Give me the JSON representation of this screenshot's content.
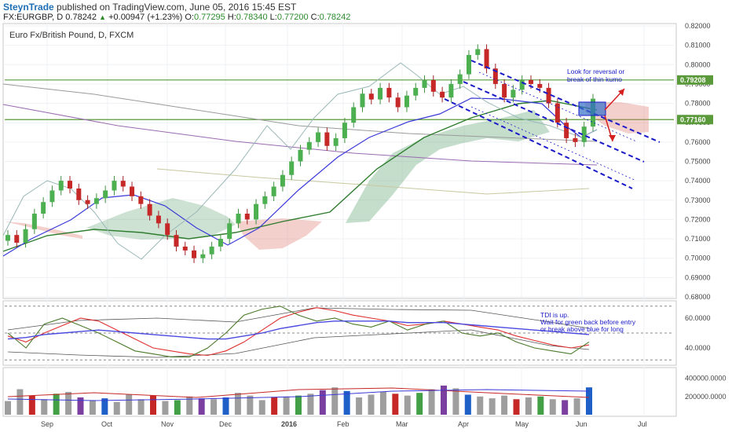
{
  "header": {
    "brand": "SteynTrade",
    "published": "published on TradingView.com, June 05, 2016 15:45 EST",
    "symbol": "FX:EURGBP, D",
    "last": "0.78242",
    "change": "+0.00947 (+1.23%)",
    "o_label": "O:",
    "o_value": "0.77295",
    "h_label": "H:",
    "h_value": "0.78340",
    "l_label": "L:",
    "l_value": "0.77200",
    "c_label": "C:",
    "c_value": "0.78242"
  },
  "chart_data": [
    {
      "type": "candlestick",
      "title": "Euro Fx/British Pound, D, FXCM",
      "ylim": [
        0.68,
        0.82
      ],
      "y_ticks": [
        "0.82000",
        "0.81000",
        "0.80000",
        "0.79000",
        "0.78000",
        "0.77000",
        "0.76000",
        "0.75000",
        "0.74000",
        "0.73000",
        "0.72000",
        "0.71000",
        "0.70000",
        "0.69000",
        "0.68000"
      ],
      "x_ticks": [
        "Sep",
        "Oct",
        "Nov",
        "Dec",
        "2016",
        "Feb",
        "Mar",
        "Apr",
        "May",
        "Jun",
        "Jul"
      ],
      "price_labels": [
        {
          "text": "0.79208",
          "value": 0.79208,
          "color": "#5a9a3a"
        },
        {
          "text": "0.77160",
          "value": 0.7716,
          "color": "#5a9a3a"
        }
      ],
      "horizontal_levels": [
        0.79208,
        0.7716
      ],
      "closes": [
        0.712,
        0.708,
        0.715,
        0.723,
        0.729,
        0.735,
        0.74,
        0.736,
        0.73,
        0.728,
        0.731,
        0.735,
        0.74,
        0.737,
        0.732,
        0.728,
        0.722,
        0.718,
        0.712,
        0.706,
        0.704,
        0.7,
        0.702,
        0.706,
        0.71,
        0.718,
        0.723,
        0.72,
        0.728,
        0.732,
        0.737,
        0.743,
        0.75,
        0.756,
        0.76,
        0.765,
        0.758,
        0.762,
        0.77,
        0.778,
        0.785,
        0.782,
        0.788,
        0.783,
        0.778,
        0.784,
        0.788,
        0.792,
        0.786,
        0.783,
        0.79,
        0.795,
        0.805,
        0.808,
        0.798,
        0.79,
        0.783,
        0.787,
        0.792,
        0.79,
        0.788,
        0.78,
        0.77,
        0.762,
        0.76,
        0.768,
        0.7824
      ],
      "annotations": [
        "Look for reversal or",
        "break of thin kumo"
      ]
    },
    {
      "type": "line",
      "title": "",
      "ylim": [
        30,
        70
      ],
      "y_ticks": [
        "60.0000",
        "40.0000"
      ],
      "levels": [
        68,
        50,
        32
      ],
      "series": [
        {
          "name": "",
          "color": "#e03030",
          "values": [
            48,
            44,
            50,
            55,
            60,
            58,
            52,
            46,
            40,
            38,
            36,
            35,
            38,
            44,
            52,
            60,
            64,
            67,
            65,
            62,
            60,
            58,
            55,
            56,
            58,
            56,
            54,
            52,
            48,
            45,
            42,
            40,
            42
          ]
        },
        {
          "name": "",
          "color": "#4a7a2a",
          "values": [
            50,
            40,
            56,
            60,
            55,
            50,
            44,
            38,
            36,
            34,
            34,
            40,
            50,
            62,
            66,
            68,
            62,
            58,
            60,
            56,
            54,
            58,
            52,
            56,
            58,
            50,
            48,
            50,
            44,
            40,
            38,
            36,
            44
          ]
        },
        {
          "name": "",
          "color": "#4a4ae0",
          "values": [
            46,
            47,
            49,
            50,
            51,
            52,
            51,
            50,
            49,
            48,
            47,
            46,
            46,
            48,
            50,
            53,
            55,
            57,
            58,
            58,
            58,
            58,
            57,
            57,
            57,
            56,
            55,
            54,
            53,
            52,
            51,
            50,
            49
          ]
        }
      ],
      "annotations": [
        "TDI is up.",
        "Wait for green back before entry",
        "or break above blue for long"
      ]
    },
    {
      "type": "bar",
      "title": "",
      "ylim": [
        0,
        500000
      ],
      "y_ticks": [
        "400000.0000",
        "200000.0000"
      ],
      "values": [
        150000,
        280000,
        210000,
        170000,
        230000,
        250000,
        190000,
        160000,
        180000,
        140000,
        220000,
        170000,
        210000,
        150000,
        160000,
        200000,
        180000,
        170000,
        190000,
        240000,
        210000,
        160000,
        190000,
        200000,
        210000,
        230000,
        270000,
        300000,
        260000,
        190000,
        220000,
        250000,
        230000,
        210000,
        240000,
        280000,
        320000,
        290000,
        220000,
        200000,
        180000,
        210000,
        170000,
        190000,
        200000,
        170000,
        160000,
        180000,
        300000
      ]
    }
  ]
}
